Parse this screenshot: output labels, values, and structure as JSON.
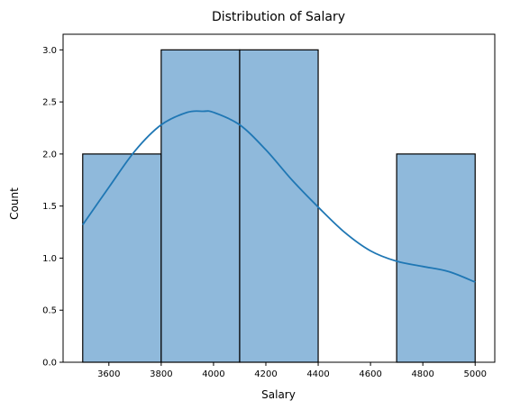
{
  "chart_data": {
    "type": "bar",
    "title": "Distribution of Salary",
    "xlabel": "Salary",
    "ylabel": "Count",
    "bins": [
      {
        "start": 3500,
        "end": 3800,
        "count": 2
      },
      {
        "start": 3800,
        "end": 4100,
        "count": 3
      },
      {
        "start": 4100,
        "end": 4400,
        "count": 3
      },
      {
        "start": 4400,
        "end": 4700,
        "count": 0
      },
      {
        "start": 4700,
        "end": 5000,
        "count": 2
      }
    ],
    "kde": {
      "x": [
        3500,
        3600,
        3700,
        3800,
        3900,
        3960,
        4000,
        4100,
        4200,
        4300,
        4400,
        4500,
        4600,
        4700,
        4800,
        4900,
        5000
      ],
      "y": [
        1.32,
        1.68,
        2.03,
        2.28,
        2.4,
        2.41,
        2.4,
        2.28,
        2.04,
        1.75,
        1.49,
        1.25,
        1.07,
        0.97,
        0.92,
        0.87,
        0.77
      ]
    },
    "xlim": [
      3425,
      5075
    ],
    "ylim": [
      0,
      3.15
    ],
    "x_ticks": [
      3600,
      3800,
      4000,
      4200,
      4400,
      4600,
      4800,
      5000
    ],
    "y_ticks": [
      "0.0",
      "0.5",
      "1.0",
      "1.5",
      "2.0",
      "2.5",
      "3.0"
    ],
    "grid": false,
    "colors": {
      "bar_fill": "#8fb9db",
      "bar_edge": "#000000",
      "kde_line": "#1f77b4",
      "axis": "#000000"
    }
  }
}
